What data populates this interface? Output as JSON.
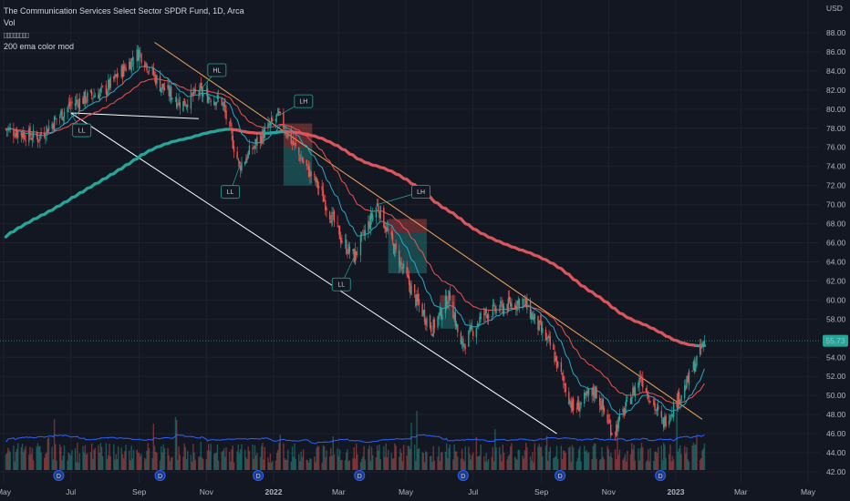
{
  "legend": {
    "title": "The Communication Services Select Sector SPDR Fund, 1D, Arca",
    "vol": "Vol",
    "indicator_boxes": "▯▯▯▯▯▯▯▯",
    "ema_label": "200 ema color mod"
  },
  "colors": {
    "background": "#131722",
    "up": "#26a69a",
    "down": "#ef5350",
    "ema200_up": "#26a69a",
    "ema200_down": "#d9565d",
    "ema_fast": "#2aa7c7",
    "ema_mid": "#ef5350",
    "volume_ma": "#2962ff",
    "trend_upper": "#f2a65a",
    "trend_lower": "#ffffff",
    "price_badge": "#26a69a"
  },
  "chart_data": {
    "type": "candlestick",
    "currency": "USD",
    "current_price": "55.73",
    "x_ticks": [
      "May",
      "Jul",
      "Sep",
      "Nov",
      "2022",
      "Mar",
      "May",
      "Jul",
      "Sep",
      "Nov",
      "2023",
      "Mar",
      "May"
    ],
    "y_ticks": [
      "88.00",
      "86.00",
      "84.00",
      "82.00",
      "80.00",
      "78.00",
      "76.00",
      "74.00",
      "72.00",
      "70.00",
      "68.00",
      "66.00",
      "64.00",
      "62.00",
      "60.00",
      "58.00",
      "54.00",
      "52.00",
      "50.00",
      "48.00",
      "46.00",
      "44.00",
      "42.00"
    ],
    "ylim": [
      41,
      90
    ],
    "price_path": [
      {
        "date": "2021-05-01",
        "price": 78.0
      },
      {
        "date": "2021-06-01",
        "price": 77.0
      },
      {
        "date": "2021-07-01",
        "price": 80.5
      },
      {
        "date": "2021-08-01",
        "price": 82.0
      },
      {
        "date": "2021-09-01",
        "price": 86.0
      },
      {
        "date": "2021-09-20",
        "price": 82.5
      },
      {
        "date": "2021-10-10",
        "price": 80.5
      },
      {
        "date": "2021-10-25",
        "price": 81.8
      },
      {
        "date": "2021-11-15",
        "price": 80.8
      },
      {
        "date": "2021-12-01",
        "price": 74.0
      },
      {
        "date": "2021-12-20",
        "price": 77.0
      },
      {
        "date": "2022-01-05",
        "price": 79.3
      },
      {
        "date": "2022-01-25",
        "price": 75.0
      },
      {
        "date": "2022-02-10",
        "price": 72.0
      },
      {
        "date": "2022-03-05",
        "price": 66.0
      },
      {
        "date": "2022-03-15",
        "price": 64.5
      },
      {
        "date": "2022-04-05",
        "price": 70.0
      },
      {
        "date": "2022-04-20",
        "price": 65.5
      },
      {
        "date": "2022-05-10",
        "price": 60.0
      },
      {
        "date": "2022-05-25",
        "price": 57.0
      },
      {
        "date": "2022-06-10",
        "price": 60.5
      },
      {
        "date": "2022-06-20",
        "price": 55.0
      },
      {
        "date": "2022-07-10",
        "price": 58.5
      },
      {
        "date": "2022-08-15",
        "price": 60.0
      },
      {
        "date": "2022-09-10",
        "price": 55.0
      },
      {
        "date": "2022-09-30",
        "price": 48.5
      },
      {
        "date": "2022-10-20",
        "price": 50.5
      },
      {
        "date": "2022-11-05",
        "price": 46.0
      },
      {
        "date": "2022-11-30",
        "price": 52.0
      },
      {
        "date": "2022-12-20",
        "price": 47.0
      },
      {
        "date": "2023-01-10",
        "price": 51.0
      },
      {
        "date": "2023-01-27",
        "price": 55.7
      }
    ],
    "labels": [
      {
        "text": "HL",
        "date": "2021-10-25",
        "price": 81.8
      },
      {
        "text": "LL",
        "date": "2021-07-01",
        "price": 79.5
      },
      {
        "text": "LL",
        "date": "2021-12-01",
        "price": 74.0
      },
      {
        "text": "LL",
        "date": "2022-03-15",
        "price": 64.5
      },
      {
        "text": "LH",
        "date": "2022-01-05",
        "price": 79.3
      },
      {
        "text": "LH",
        "date": "2022-04-05",
        "price": 70.0
      }
    ],
    "dividends_marker": "D",
    "dividend_dates": [
      "2021-06-20",
      "2021-09-20",
      "2021-12-18",
      "2022-03-20",
      "2022-06-22",
      "2022-09-18",
      "2022-12-18"
    ],
    "grid": true
  }
}
